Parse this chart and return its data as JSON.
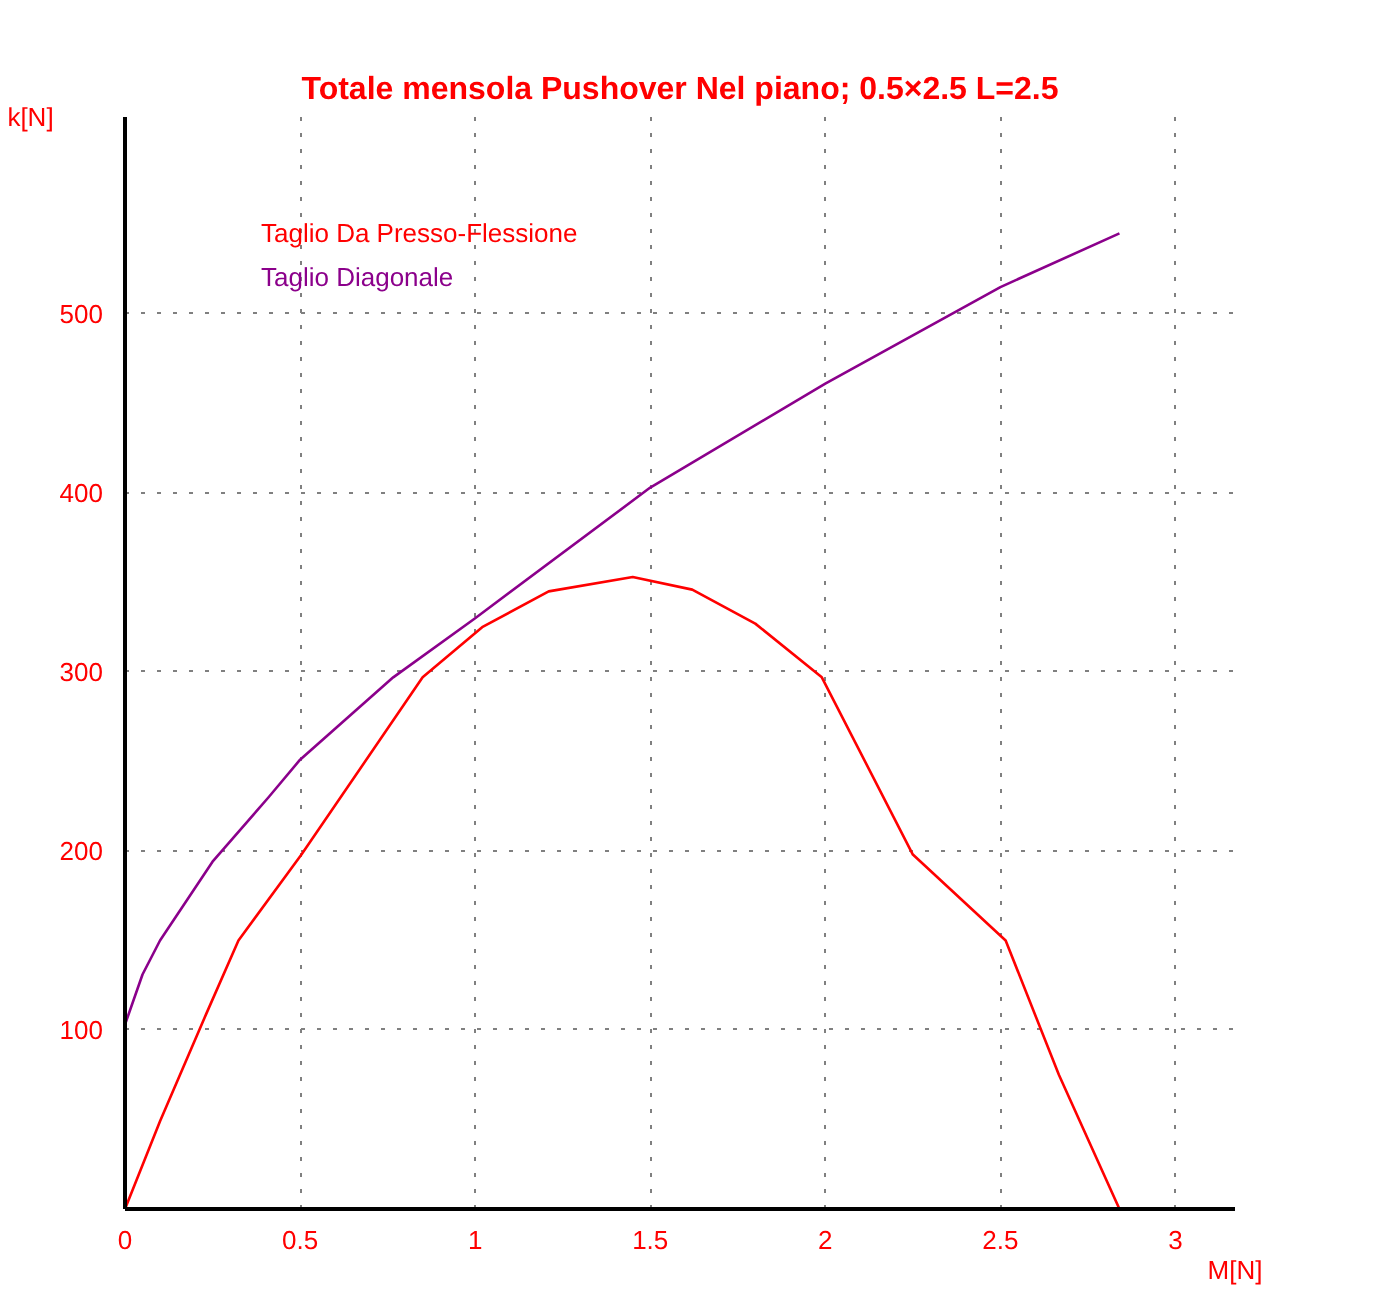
{
  "chart_data": {
    "type": "line",
    "title": "Totale mensola Pushover Nel piano; 0.5×2.5 L=2.5",
    "xlabel": "M[N]",
    "ylabel": "k[N]",
    "xlim": [
      0,
      3.17
    ],
    "ylim": [
      0,
      610
    ],
    "xticks": [
      0,
      0.5,
      1,
      1.5,
      2,
      2.5,
      3
    ],
    "yticks": [
      100,
      200,
      300,
      400,
      500
    ],
    "grid": true,
    "legend": "top left",
    "marker": "none",
    "line_style": "solid",
    "series": [
      {
        "name": "Taglio Da Presso-Flessione",
        "color": "#ff0000",
        "x": [
          0,
          0.1,
          0.232,
          0.324,
          0.504,
          0.85,
          1.02,
          1.21,
          1.45,
          1.62,
          1.8,
          1.99,
          2.25,
          2.515,
          2.667,
          2.84
        ],
        "values": [
          0,
          49,
          109,
          150,
          198,
          297,
          325,
          345,
          353,
          346,
          327,
          297,
          198,
          150,
          75,
          0
        ]
      },
      {
        "name": "Taglio Diagonale",
        "color": "#8b008b",
        "x": [
          0,
          0.05,
          0.1,
          0.25,
          0.41,
          0.5,
          0.766,
          1.0,
          1.5,
          2.0,
          2.5,
          2.84
        ],
        "values": [
          103,
          131,
          150,
          194,
          230,
          251,
          297,
          330,
          403,
          461,
          515,
          545
        ]
      }
    ]
  }
}
